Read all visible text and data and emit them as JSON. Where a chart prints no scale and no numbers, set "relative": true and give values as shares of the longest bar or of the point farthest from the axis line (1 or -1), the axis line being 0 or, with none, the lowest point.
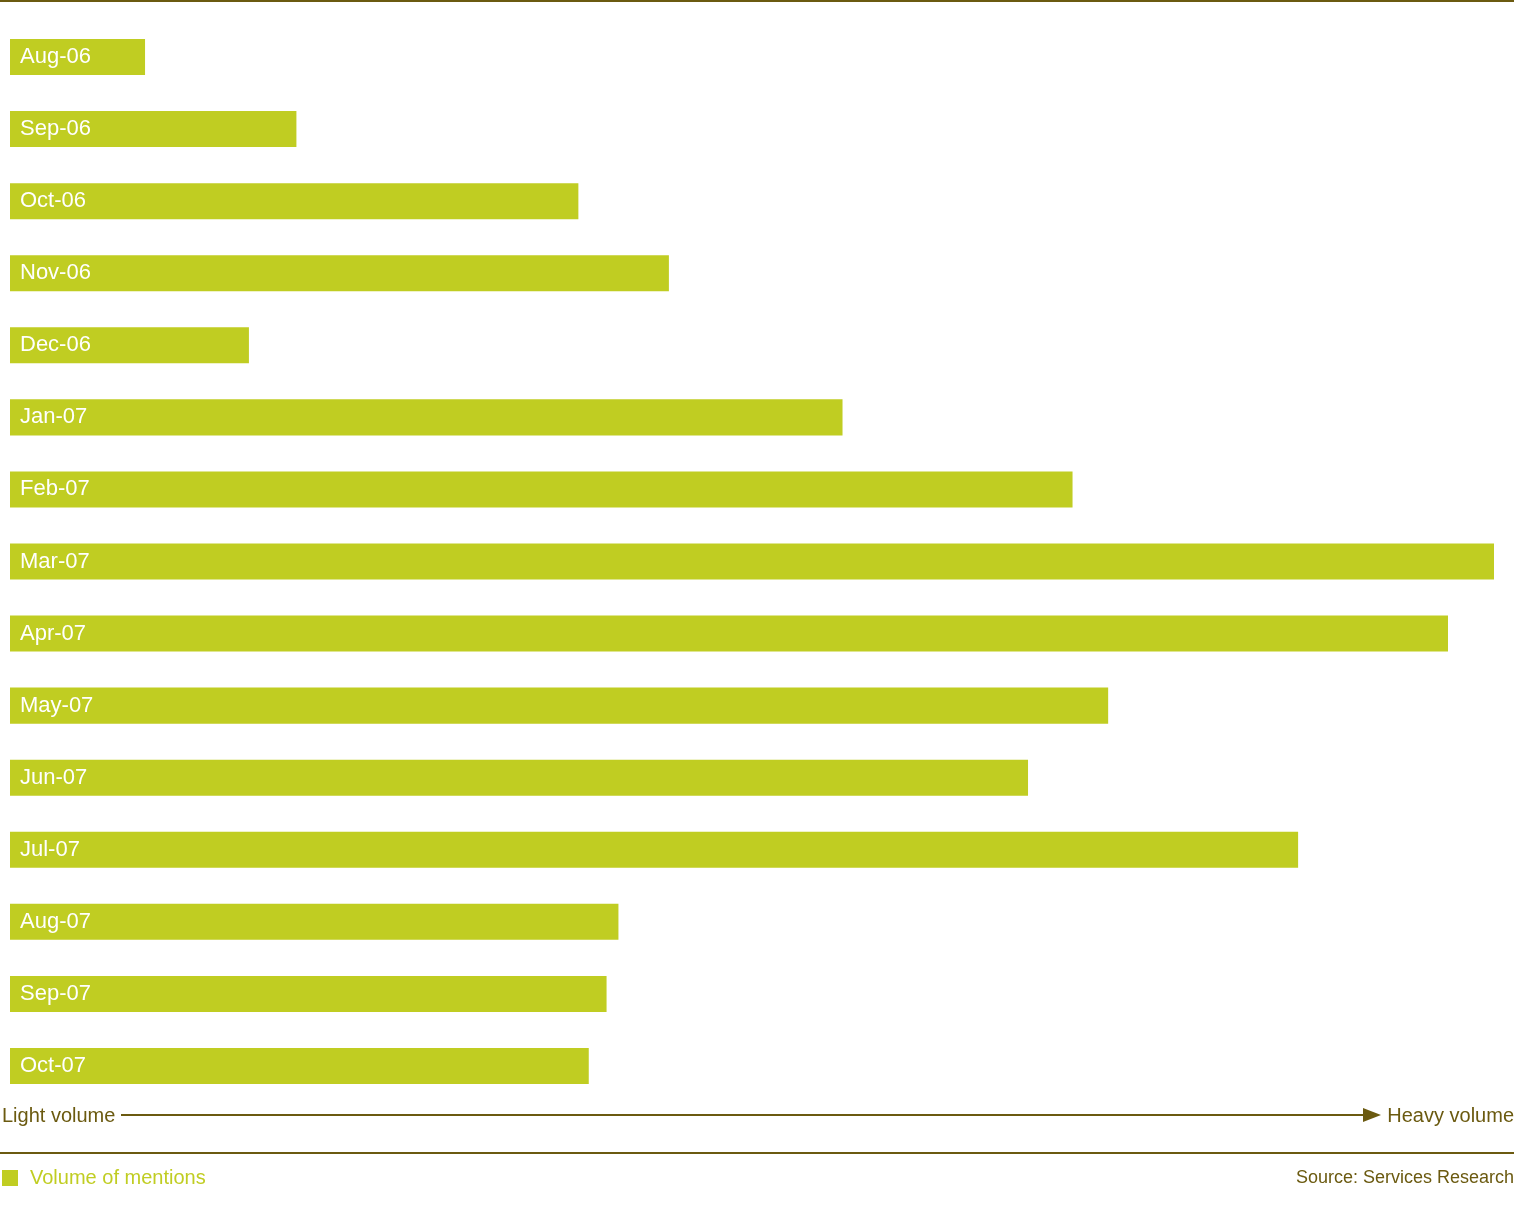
{
  "chart_data": {
    "type": "bar",
    "orientation": "horizontal",
    "relative": true,
    "categories": [
      "Aug-06",
      "Sep-06",
      "Oct-06",
      "Nov-06",
      "Dec-06",
      "Jan-07",
      "Feb-07",
      "Mar-07",
      "Apr-07",
      "May-07",
      "Jun-07",
      "Jul-07",
      "Aug-07",
      "Sep-07",
      "Oct-07"
    ],
    "series": [
      {
        "name": "Volume of mentions",
        "color": "#c0cd22",
        "values": [
          0.091,
          0.193,
          0.383,
          0.444,
          0.161,
          0.561,
          0.716,
          1,
          0.969,
          0.74,
          0.686,
          0.868,
          0.41,
          0.402,
          0.39
        ]
      }
    ],
    "xlabel": "Light volume",
    "annotations": [
      "Heavy volume",
      "Source: Services Research"
    ],
    "legend": "bottom left"
  }
}
